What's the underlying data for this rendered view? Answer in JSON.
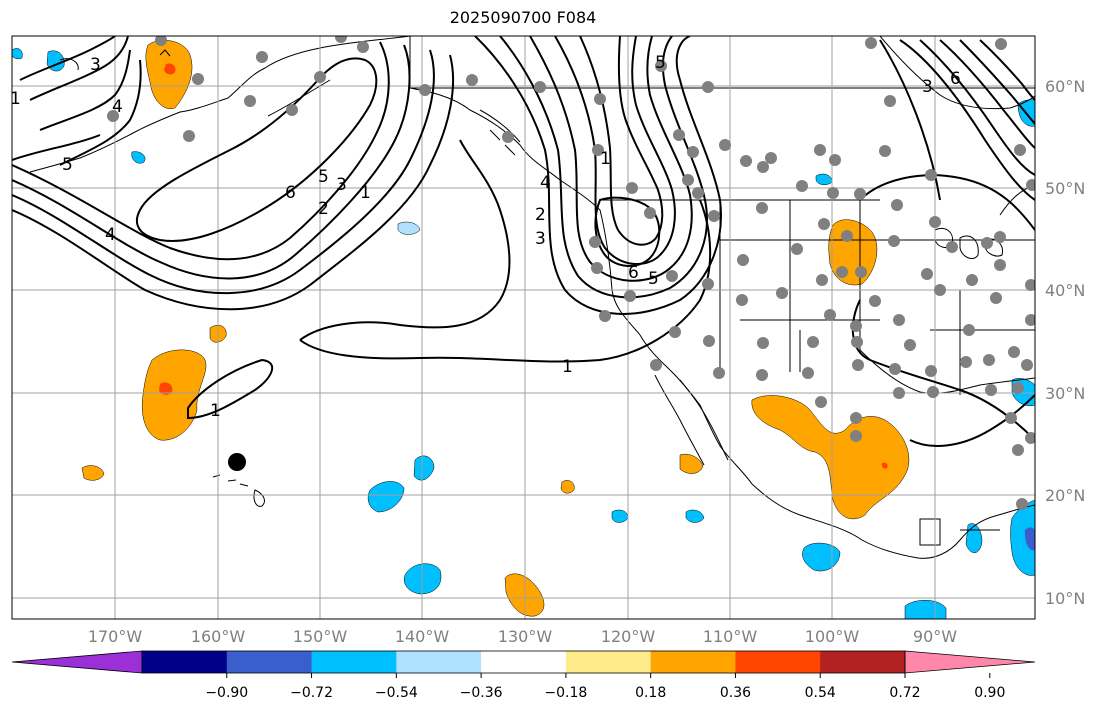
{
  "title": "2025090700 F084",
  "lon_labels": [
    "170°W",
    "160°W",
    "150°W",
    "140°W",
    "130°W",
    "120°W",
    "110°W",
    "100°W",
    "90°W"
  ],
  "lat_labels": [
    "60°N",
    "50°N",
    "40°N",
    "30°N",
    "20°N",
    "10°N"
  ],
  "contour_labels": [
    "1",
    "2",
    "3",
    "4",
    "5",
    "6"
  ],
  "colorbar": {
    "ticks": [
      "−0.90",
      "−0.72",
      "−0.54",
      "−0.36",
      "−0.18",
      "0.18",
      "0.36",
      "0.54",
      "0.72",
      "0.90"
    ],
    "colors": [
      "#9b30d9",
      "#00008b",
      "#3a5fcd",
      "#00bfff",
      "#b0e2ff",
      "#ffffff",
      "#ffeb8a",
      "#ffa500",
      "#ff4500",
      "#b22222",
      "#ff88aa"
    ]
  },
  "colors": {
    "positive": "#ffa500",
    "positive_strong": "#ff4500",
    "negative": "#00bfff",
    "negative_strong": "#3a5fcd",
    "gridline": "#a0a0a0",
    "station_dot": "#808080"
  }
}
